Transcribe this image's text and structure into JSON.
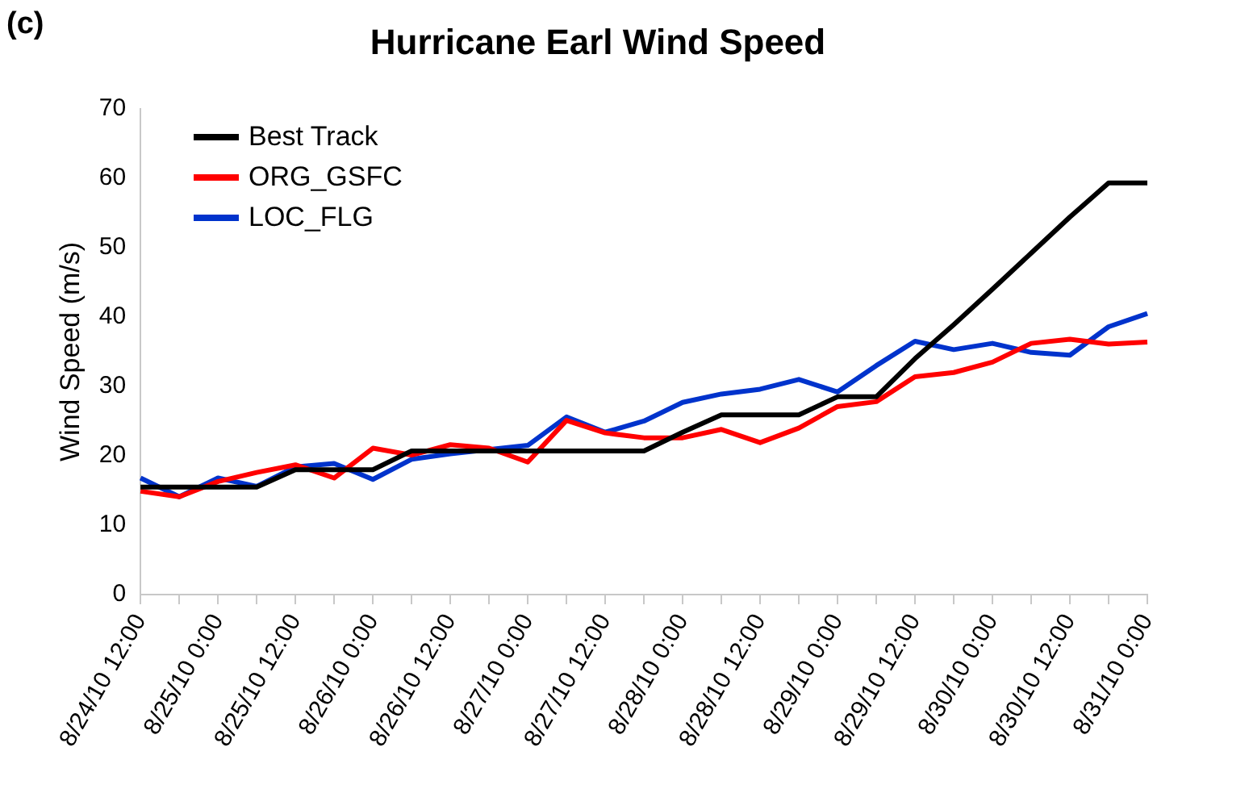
{
  "chart_data": {
    "type": "line",
    "title": "Hurricane Earl Wind Speed",
    "ylabel": "Wind Speed (m/s)",
    "annotations": [
      "(c)"
    ],
    "categories": [
      "8/24/10 12:00",
      null,
      "8/25/10 0:00",
      null,
      "8/25/10 12:00",
      null,
      "8/26/10 0:00",
      null,
      "8/26/10 12:00",
      null,
      "8/27/10 0:00",
      null,
      "8/27/10 12:00",
      null,
      "8/28/10 0:00",
      null,
      "8/28/10 12:00",
      null,
      "8/29/10 0:00",
      null,
      "8/29/10 12:00",
      null,
      "8/30/10 0:00",
      null,
      "8/30/10 12:00",
      null,
      "8/31/10 0:00"
    ],
    "series": [
      {
        "name": "Best Track",
        "color": "#000000",
        "values": [
          15.5,
          15.5,
          15.5,
          15.5,
          18,
          18,
          18,
          20.7,
          20.7,
          20.7,
          20.7,
          20.7,
          20.7,
          20.7,
          23.4,
          25.9,
          25.9,
          25.9,
          28.5,
          28.5,
          34,
          38.9,
          44,
          49.2,
          54.4,
          59.3,
          59.3
        ]
      },
      {
        "name": "ORG_GSFC",
        "color": "#ff0000",
        "values": [
          14.9,
          14.1,
          16.3,
          17.6,
          18.7,
          16.8,
          21.1,
          20.1,
          21.6,
          21.1,
          19.1,
          25.1,
          23.3,
          22.6,
          22.6,
          23.8,
          21.9,
          24,
          27.1,
          27.8,
          31.4,
          32,
          33.5,
          36.2,
          36.8,
          36.1,
          36.4
        ]
      },
      {
        "name": "LOC_FLG",
        "color": "#0033cc",
        "values": [
          16.8,
          14.1,
          16.8,
          15.6,
          18.4,
          18.9,
          16.6,
          19.5,
          20.3,
          20.9,
          21.5,
          25.6,
          23.4,
          25,
          27.7,
          28.9,
          29.6,
          31,
          29.2,
          33,
          36.5,
          35.3,
          36.2,
          34.9,
          34.5,
          38.6,
          40.5
        ]
      }
    ],
    "ylim": [
      0,
      70
    ],
    "yticks": [
      0,
      10,
      20,
      30,
      40,
      50,
      60,
      70
    ],
    "grid": false,
    "legend": "top left",
    "marker": "none",
    "line_style": "solid"
  }
}
